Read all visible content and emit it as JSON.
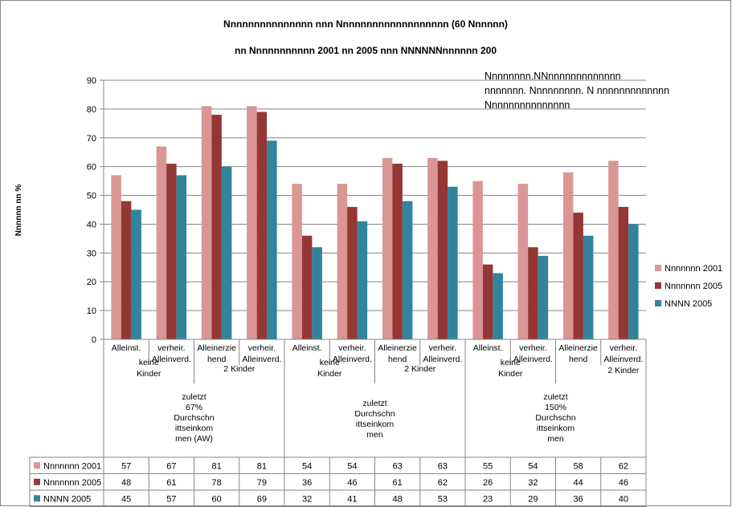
{
  "chart_data": {
    "type": "bar",
    "title_line1": "Nnnnnnnnnnnnnnn nnn Nnnnnnnnnnnnnnnnnnn (60 Nnnnnn)",
    "title_line2": "nn Nnnnnnnnnnn 2001 nn 2005 nnn NNNNNNnnnnnn 200",
    "ylabel": "Nnnnnn nn %",
    "ylim": [
      0,
      90
    ],
    "yticks": [
      0,
      10,
      20,
      30,
      40,
      50,
      60,
      70,
      80,
      90
    ],
    "grid": true,
    "legend_position": "right",
    "note_lines": [
      "Nnnnnnnn.NNnnnnnnnnnnnnn",
      "nnnnnnn. Nnnnnnnnn. N nnnnnnnnnnnnn",
      "Nnnnnnnnnnnnnnn"
    ],
    "categories": [
      "Alleinst. | keine Kinder | zuletzt 67% DurchschnittseinkommenAW",
      "verheir. Alleinverd. | keine Kinder | zuletzt 67%",
      "Alleinerziehend | 2 Kinder | zuletzt 67%",
      "verheir. Alleinverd. | 2 Kinder | zuletzt 67%",
      "Alleinst. | keine Kinder | zuletzt Durchschnittseinkommen",
      "verheir. Alleinverd. | keine Kinder | zuletzt Durchschnittseinkommen",
      "Alleinerziehend | 2 Kinder | zuletzt Durchschnittseinkommen",
      "verheir. Alleinverd. | 2 Kinder | zuletzt Durchschnittseinkommen",
      "Alleinst. | keine Kinder | zuletzt 150%",
      "verheir. Alleinverd. | keine Kinder | zuletzt 150%",
      "Alleinerziehend | zuletzt 150%",
      "verheir. Alleinverd. | 2 Kinder | zuletzt 150%"
    ],
    "category_lines": [
      [
        "Alleinst."
      ],
      [
        "verheir.",
        "Alleinverd."
      ],
      [
        "Alleinerzie",
        "hend"
      ],
      [
        "verheir.",
        "Alleinverd."
      ],
      [
        "Alleinst."
      ],
      [
        "verheir.",
        "Alleinverd."
      ],
      [
        "Alleinerzie",
        "hend"
      ],
      [
        "verheir.",
        "Alleinverd."
      ],
      [
        "Alleinst."
      ],
      [
        "verheir.",
        "Alleinverd."
      ],
      [
        "Alleinerzie",
        "hend"
      ],
      [
        "verheir.",
        "Alleinverd.",
        "2 Kinder"
      ]
    ],
    "subgroups": [
      {
        "label_lines": [
          "keine",
          "Kinder"
        ]
      },
      {
        "label_lines": [
          "2 Kinder"
        ]
      },
      {
        "label_lines": [
          "keine",
          "Kinder"
        ]
      },
      {
        "label_lines": [
          "2 Kinder"
        ]
      },
      {
        "label_lines": [
          "keine",
          "Kinder"
        ]
      }
    ],
    "groups": [
      {
        "label_lines": [
          "zuletzt",
          "67%",
          "Durchschn",
          "ittseinkom",
          "men (AW)"
        ]
      },
      {
        "label_lines": [
          "zuletzt",
          "Durchschn",
          "ittseinkom",
          "men"
        ]
      },
      {
        "label_lines": [
          "zuletzt",
          "150%",
          "Durchschn",
          "ittseinkom",
          "men"
        ]
      }
    ],
    "series": [
      {
        "name": "Nnnnnnn 2001",
        "color": "#d99694",
        "values": [
          57,
          67,
          81,
          81,
          54,
          54,
          63,
          63,
          55,
          54,
          58,
          62
        ]
      },
      {
        "name": "Nnnnnnn 2005",
        "color": "#953735",
        "values": [
          48,
          61,
          78,
          79,
          36,
          46,
          61,
          62,
          26,
          32,
          44,
          46
        ]
      },
      {
        "name": "NNNN 2005",
        "color": "#31849b",
        "values": [
          45,
          57,
          60,
          69,
          32,
          41,
          48,
          53,
          23,
          29,
          36,
          40
        ]
      }
    ]
  }
}
